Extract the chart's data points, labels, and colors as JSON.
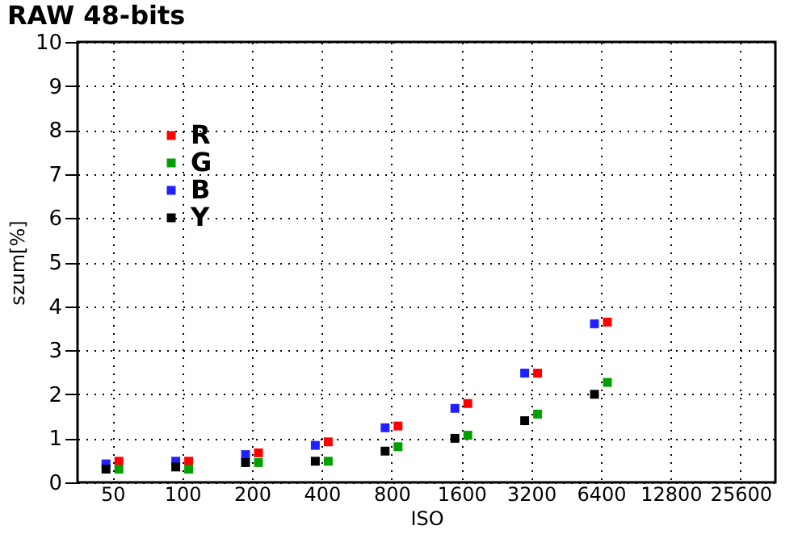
{
  "chart_data": {
    "type": "scatter",
    "title": "RAW 48-bits",
    "xlabel": "ISO",
    "ylabel": "szum[%]",
    "categories": [
      "50",
      "100",
      "200",
      "400",
      "800",
      "1600",
      "3200",
      "6400",
      "12800",
      "25600"
    ],
    "series": [
      {
        "name": "R",
        "color": "#ff0000",
        "values": [
          0.48,
          0.48,
          0.67,
          0.92,
          1.28,
          1.79,
          2.48,
          3.64,
          null,
          null
        ]
      },
      {
        "name": "G",
        "color": "#00a000",
        "values": [
          0.3,
          0.3,
          0.45,
          0.48,
          0.81,
          1.07,
          1.55,
          2.27,
          null,
          null
        ]
      },
      {
        "name": "B",
        "color": "#2020ff",
        "values": [
          0.42,
          0.48,
          0.63,
          0.84,
          1.24,
          1.68,
          2.48,
          3.6,
          null,
          null
        ]
      },
      {
        "name": "Y",
        "color": "#000000",
        "values": [
          0.3,
          0.35,
          0.45,
          0.48,
          0.71,
          1.0,
          1.4,
          2.0,
          null,
          null
        ]
      }
    ],
    "ylim": [
      0,
      10
    ],
    "yticks": [
      0,
      1,
      2,
      3,
      4,
      5,
      6,
      7,
      8,
      9,
      10
    ],
    "grid": true,
    "legend": "top left",
    "marker": "square"
  }
}
